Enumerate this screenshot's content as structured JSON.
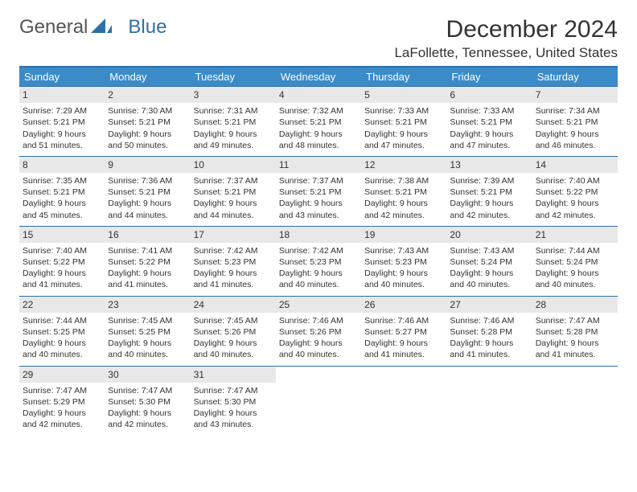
{
  "logo": {
    "part1": "General",
    "part2": "Blue"
  },
  "title": "December 2024",
  "location": "LaFollette, Tennessee, United States",
  "colors": {
    "header_bar": "#3b8bc9",
    "rule": "#2f6fa7",
    "daynum_bg": "#e8e8e8",
    "text": "#333333",
    "bg": "#ffffff"
  },
  "dow": [
    "Sunday",
    "Monday",
    "Tuesday",
    "Wednesday",
    "Thursday",
    "Friday",
    "Saturday"
  ],
  "labels": {
    "sunrise": "Sunrise:",
    "sunset": "Sunset:",
    "daylight": "Daylight:"
  },
  "weeks": [
    [
      {
        "n": "1",
        "sr": "7:29 AM",
        "ss": "5:21 PM",
        "dl": "9 hours and 51 minutes."
      },
      {
        "n": "2",
        "sr": "7:30 AM",
        "ss": "5:21 PM",
        "dl": "9 hours and 50 minutes."
      },
      {
        "n": "3",
        "sr": "7:31 AM",
        "ss": "5:21 PM",
        "dl": "9 hours and 49 minutes."
      },
      {
        "n": "4",
        "sr": "7:32 AM",
        "ss": "5:21 PM",
        "dl": "9 hours and 48 minutes."
      },
      {
        "n": "5",
        "sr": "7:33 AM",
        "ss": "5:21 PM",
        "dl": "9 hours and 47 minutes."
      },
      {
        "n": "6",
        "sr": "7:33 AM",
        "ss": "5:21 PM",
        "dl": "9 hours and 47 minutes."
      },
      {
        "n": "7",
        "sr": "7:34 AM",
        "ss": "5:21 PM",
        "dl": "9 hours and 46 minutes."
      }
    ],
    [
      {
        "n": "8",
        "sr": "7:35 AM",
        "ss": "5:21 PM",
        "dl": "9 hours and 45 minutes."
      },
      {
        "n": "9",
        "sr": "7:36 AM",
        "ss": "5:21 PM",
        "dl": "9 hours and 44 minutes."
      },
      {
        "n": "10",
        "sr": "7:37 AM",
        "ss": "5:21 PM",
        "dl": "9 hours and 44 minutes."
      },
      {
        "n": "11",
        "sr": "7:37 AM",
        "ss": "5:21 PM",
        "dl": "9 hours and 43 minutes."
      },
      {
        "n": "12",
        "sr": "7:38 AM",
        "ss": "5:21 PM",
        "dl": "9 hours and 42 minutes."
      },
      {
        "n": "13",
        "sr": "7:39 AM",
        "ss": "5:21 PM",
        "dl": "9 hours and 42 minutes."
      },
      {
        "n": "14",
        "sr": "7:40 AM",
        "ss": "5:22 PM",
        "dl": "9 hours and 42 minutes."
      }
    ],
    [
      {
        "n": "15",
        "sr": "7:40 AM",
        "ss": "5:22 PM",
        "dl": "9 hours and 41 minutes."
      },
      {
        "n": "16",
        "sr": "7:41 AM",
        "ss": "5:22 PM",
        "dl": "9 hours and 41 minutes."
      },
      {
        "n": "17",
        "sr": "7:42 AM",
        "ss": "5:23 PM",
        "dl": "9 hours and 41 minutes."
      },
      {
        "n": "18",
        "sr": "7:42 AM",
        "ss": "5:23 PM",
        "dl": "9 hours and 40 minutes."
      },
      {
        "n": "19",
        "sr": "7:43 AM",
        "ss": "5:23 PM",
        "dl": "9 hours and 40 minutes."
      },
      {
        "n": "20",
        "sr": "7:43 AM",
        "ss": "5:24 PM",
        "dl": "9 hours and 40 minutes."
      },
      {
        "n": "21",
        "sr": "7:44 AM",
        "ss": "5:24 PM",
        "dl": "9 hours and 40 minutes."
      }
    ],
    [
      {
        "n": "22",
        "sr": "7:44 AM",
        "ss": "5:25 PM",
        "dl": "9 hours and 40 minutes."
      },
      {
        "n": "23",
        "sr": "7:45 AM",
        "ss": "5:25 PM",
        "dl": "9 hours and 40 minutes."
      },
      {
        "n": "24",
        "sr": "7:45 AM",
        "ss": "5:26 PM",
        "dl": "9 hours and 40 minutes."
      },
      {
        "n": "25",
        "sr": "7:46 AM",
        "ss": "5:26 PM",
        "dl": "9 hours and 40 minutes."
      },
      {
        "n": "26",
        "sr": "7:46 AM",
        "ss": "5:27 PM",
        "dl": "9 hours and 41 minutes."
      },
      {
        "n": "27",
        "sr": "7:46 AM",
        "ss": "5:28 PM",
        "dl": "9 hours and 41 minutes."
      },
      {
        "n": "28",
        "sr": "7:47 AM",
        "ss": "5:28 PM",
        "dl": "9 hours and 41 minutes."
      }
    ],
    [
      {
        "n": "29",
        "sr": "7:47 AM",
        "ss": "5:29 PM",
        "dl": "9 hours and 42 minutes."
      },
      {
        "n": "30",
        "sr": "7:47 AM",
        "ss": "5:30 PM",
        "dl": "9 hours and 42 minutes."
      },
      {
        "n": "31",
        "sr": "7:47 AM",
        "ss": "5:30 PM",
        "dl": "9 hours and 43 minutes."
      },
      null,
      null,
      null,
      null
    ]
  ]
}
